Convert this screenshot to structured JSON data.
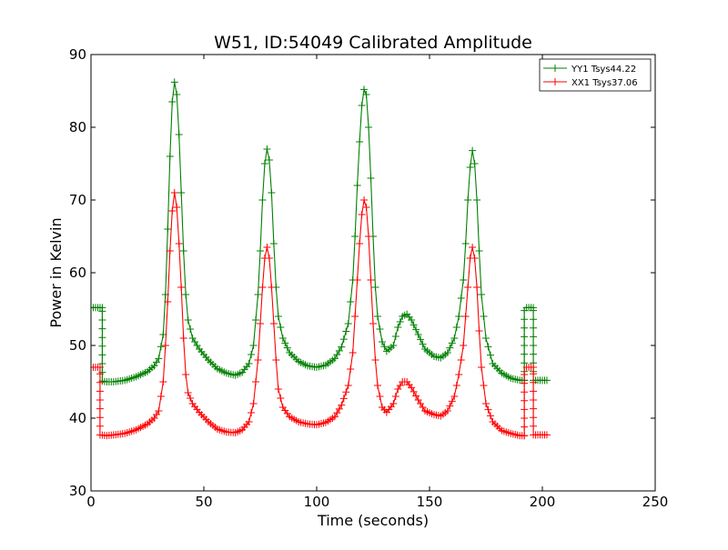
{
  "chart_data": {
    "type": "line",
    "title": "W51, ID:54049 Calibrated Amplitude",
    "xlabel": "Time (seconds)",
    "ylabel": "Power in Kelvin",
    "xlim": [
      0,
      250
    ],
    "ylim": [
      30,
      90
    ],
    "xticks": [
      "0",
      "50",
      "100",
      "150",
      "200",
      "250"
    ],
    "yticks": [
      "30",
      "40",
      "50",
      "60",
      "70",
      "80",
      "90"
    ],
    "grid": false,
    "legend_position": "top-right",
    "series": [
      {
        "name": "YY1 Tsys44.22",
        "color": "#008000",
        "points": [
          [
            0,
            55.2
          ],
          [
            1,
            55.2
          ],
          [
            2,
            55.2
          ],
          [
            3,
            55.2
          ],
          [
            4,
            55.2
          ],
          [
            5,
            55.2
          ],
          [
            5,
            45.1
          ],
          [
            7,
            45.0
          ],
          [
            10,
            45.0
          ],
          [
            15,
            45.2
          ],
          [
            20,
            45.7
          ],
          [
            25,
            46.4
          ],
          [
            28,
            47.2
          ],
          [
            30,
            48.2
          ],
          [
            32,
            51.5
          ],
          [
            33,
            57
          ],
          [
            34,
            66
          ],
          [
            35,
            76
          ],
          [
            36,
            83.5
          ],
          [
            37,
            86.2
          ],
          [
            38,
            84.5
          ],
          [
            39,
            79
          ],
          [
            40,
            71
          ],
          [
            41,
            63
          ],
          [
            42,
            57
          ],
          [
            43,
            53.5
          ],
          [
            45,
            51
          ],
          [
            48,
            49.5
          ],
          [
            52,
            48
          ],
          [
            56,
            46.8
          ],
          [
            60,
            46.2
          ],
          [
            64,
            45.9
          ],
          [
            67,
            46.3
          ],
          [
            70,
            47.5
          ],
          [
            72,
            50
          ],
          [
            74,
            57
          ],
          [
            75,
            63
          ],
          [
            76,
            70
          ],
          [
            77,
            75
          ],
          [
            78,
            77
          ],
          [
            79,
            75.5
          ],
          [
            80,
            71
          ],
          [
            81,
            64
          ],
          [
            82,
            58
          ],
          [
            83,
            54
          ],
          [
            85,
            51
          ],
          [
            88,
            49
          ],
          [
            92,
            47.8
          ],
          [
            96,
            47.2
          ],
          [
            100,
            47.0
          ],
          [
            104,
            47.3
          ],
          [
            108,
            48.2
          ],
          [
            111,
            49.8
          ],
          [
            114,
            53
          ],
          [
            116,
            59
          ],
          [
            117,
            65
          ],
          [
            118,
            72
          ],
          [
            119,
            78
          ],
          [
            120,
            83
          ],
          [
            121,
            85.2
          ],
          [
            122,
            84.5
          ],
          [
            123,
            80
          ],
          [
            124,
            73
          ],
          [
            125,
            65
          ],
          [
            126,
            58
          ],
          [
            127,
            54
          ],
          [
            129,
            50.5
          ],
          [
            131,
            49.2
          ],
          [
            134,
            50
          ],
          [
            136,
            52.5
          ],
          [
            138,
            54
          ],
          [
            140,
            54.3
          ],
          [
            142,
            53.5
          ],
          [
            145,
            51.5
          ],
          [
            148,
            49.5
          ],
          [
            152,
            48.5
          ],
          [
            155,
            48.3
          ],
          [
            158,
            49
          ],
          [
            161,
            51
          ],
          [
            163,
            54
          ],
          [
            165,
            59
          ],
          [
            166,
            64
          ],
          [
            167,
            70
          ],
          [
            168,
            74.5
          ],
          [
            169,
            76.8
          ],
          [
            170,
            75
          ],
          [
            171,
            70
          ],
          [
            172,
            63
          ],
          [
            173,
            57
          ],
          [
            175,
            51
          ],
          [
            178,
            47.5
          ],
          [
            182,
            46.2
          ],
          [
            186,
            45.5
          ],
          [
            190,
            45.2
          ],
          [
            192,
            45.2
          ],
          [
            192,
            55.2
          ],
          [
            194,
            55.2
          ],
          [
            196,
            55.2
          ],
          [
            196,
            45.2
          ],
          [
            198,
            45.2
          ],
          [
            200,
            45.2
          ],
          [
            202,
            45.2
          ]
        ]
      },
      {
        "name": "XX1 Tsys37.06",
        "color": "#ff0000",
        "points": [
          [
            0,
            47.0
          ],
          [
            1,
            47.0
          ],
          [
            2,
            47.0
          ],
          [
            3,
            47.0
          ],
          [
            4,
            47.0
          ],
          [
            4,
            37.7
          ],
          [
            7,
            37.6
          ],
          [
            10,
            37.7
          ],
          [
            15,
            37.9
          ],
          [
            20,
            38.4
          ],
          [
            25,
            39.2
          ],
          [
            28,
            40
          ],
          [
            30,
            41
          ],
          [
            32,
            45
          ],
          [
            33,
            50
          ],
          [
            34,
            56
          ],
          [
            35,
            63
          ],
          [
            36,
            68.5
          ],
          [
            37,
            71
          ],
          [
            38,
            69
          ],
          [
            39,
            64
          ],
          [
            40,
            58
          ],
          [
            41,
            51
          ],
          [
            42,
            46
          ],
          [
            43,
            43.5
          ],
          [
            45,
            42
          ],
          [
            48,
            40.8
          ],
          [
            52,
            39.5
          ],
          [
            56,
            38.5
          ],
          [
            60,
            38.1
          ],
          [
            64,
            38
          ],
          [
            67,
            38.4
          ],
          [
            70,
            39.5
          ],
          [
            72,
            42
          ],
          [
            74,
            48
          ],
          [
            75,
            53
          ],
          [
            76,
            58
          ],
          [
            77,
            62
          ],
          [
            78,
            63.5
          ],
          [
            79,
            62
          ],
          [
            80,
            58
          ],
          [
            81,
            53
          ],
          [
            82,
            48
          ],
          [
            83,
            44
          ],
          [
            85,
            41.5
          ],
          [
            88,
            40.2
          ],
          [
            92,
            39.5
          ],
          [
            96,
            39.2
          ],
          [
            100,
            39.1
          ],
          [
            104,
            39.4
          ],
          [
            108,
            40.2
          ],
          [
            111,
            41.8
          ],
          [
            114,
            44.5
          ],
          [
            116,
            49
          ],
          [
            117,
            54
          ],
          [
            118,
            59
          ],
          [
            119,
            64
          ],
          [
            120,
            68
          ],
          [
            121,
            70
          ],
          [
            122,
            69
          ],
          [
            123,
            65
          ],
          [
            124,
            59
          ],
          [
            125,
            53
          ],
          [
            126,
            48
          ],
          [
            127,
            44.5
          ],
          [
            129,
            41.5
          ],
          [
            131,
            40.8
          ],
          [
            134,
            42
          ],
          [
            136,
            44
          ],
          [
            138,
            45
          ],
          [
            140,
            45
          ],
          [
            142,
            44.2
          ],
          [
            145,
            42.5
          ],
          [
            148,
            41
          ],
          [
            152,
            40.5
          ],
          [
            155,
            40.3
          ],
          [
            158,
            41
          ],
          [
            161,
            43
          ],
          [
            163,
            46
          ],
          [
            165,
            50
          ],
          [
            166,
            54
          ],
          [
            167,
            58
          ],
          [
            168,
            62
          ],
          [
            169,
            63.5
          ],
          [
            170,
            62
          ],
          [
            171,
            58
          ],
          [
            172,
            52
          ],
          [
            173,
            47
          ],
          [
            175,
            42
          ],
          [
            178,
            39.5
          ],
          [
            182,
            38.3
          ],
          [
            186,
            37.9
          ],
          [
            190,
            37.6
          ],
          [
            192,
            37.6
          ],
          [
            192,
            47.0
          ],
          [
            194,
            47.0
          ],
          [
            196,
            47.0
          ],
          [
            196,
            37.7
          ],
          [
            198,
            37.7
          ],
          [
            200,
            37.7
          ],
          [
            202,
            37.7
          ]
        ]
      }
    ]
  }
}
